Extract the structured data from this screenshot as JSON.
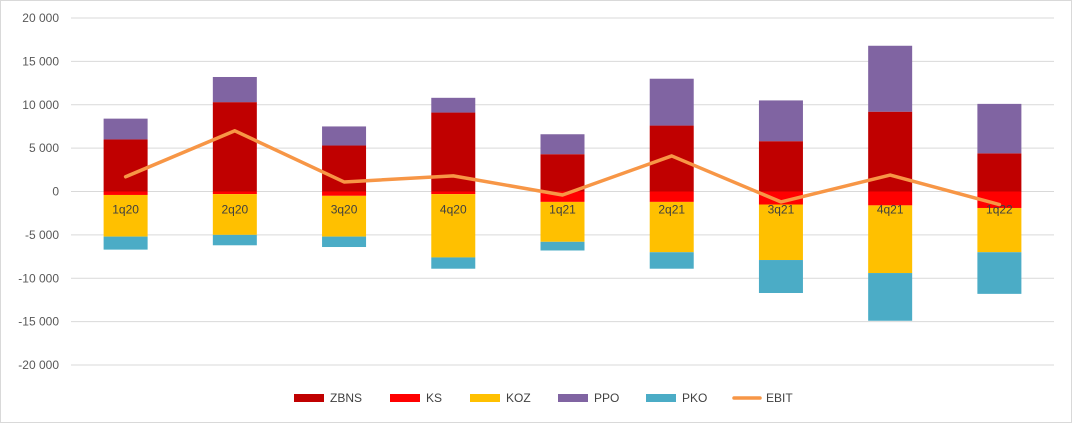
{
  "chart_data": {
    "type": "bar",
    "stacked": true,
    "categories": [
      "1q20",
      "2q20",
      "3q20",
      "4q20",
      "1q21",
      "2q21",
      "3q21",
      "4q21",
      "1q22"
    ],
    "ylim": [
      -20000,
      20000
    ],
    "yticks": [
      20000,
      15000,
      10000,
      5000,
      0,
      -5000,
      -10000,
      -15000,
      -20000
    ],
    "ytick_labels": [
      "20 000",
      "15 000",
      "10 000",
      "5 000",
      "0",
      "-5 000",
      "-10 000",
      "-15 000",
      "-20 000"
    ],
    "grid": true,
    "legend_position": "bottom",
    "series": [
      {
        "name": "ZBNS",
        "type": "bar",
        "color": "#c00000",
        "values": [
          6000,
          10300,
          5300,
          9100,
          4300,
          7600,
          5800,
          9200,
          4400
        ]
      },
      {
        "name": "KS",
        "type": "bar",
        "color": "#ff0000",
        "values": [
          -400,
          -300,
          -500,
          -300,
          -1200,
          -1200,
          -1500,
          -1600,
          -1900
        ]
      },
      {
        "name": "KOZ",
        "type": "bar",
        "color": "#ffc000",
        "values": [
          -4800,
          -4700,
          -4700,
          -7300,
          -4600,
          -5800,
          -6400,
          -7800,
          -5100
        ]
      },
      {
        "name": "PPO",
        "type": "bar",
        "color": "#8064a2",
        "values": [
          2400,
          2900,
          2200,
          1700,
          2300,
          5400,
          4700,
          7600,
          5700
        ]
      },
      {
        "name": "PKO",
        "type": "bar",
        "color": "#4bacc6",
        "values": [
          -1500,
          -1200,
          -1200,
          -1300,
          -1000,
          -1900,
          -3800,
          -5500,
          -4800
        ]
      },
      {
        "name": "EBIT",
        "type": "line",
        "color": "#f79646",
        "values": [
          1700,
          7000,
          1100,
          1800,
          -400,
          4100,
          -1200,
          1900,
          -1500
        ]
      }
    ]
  }
}
